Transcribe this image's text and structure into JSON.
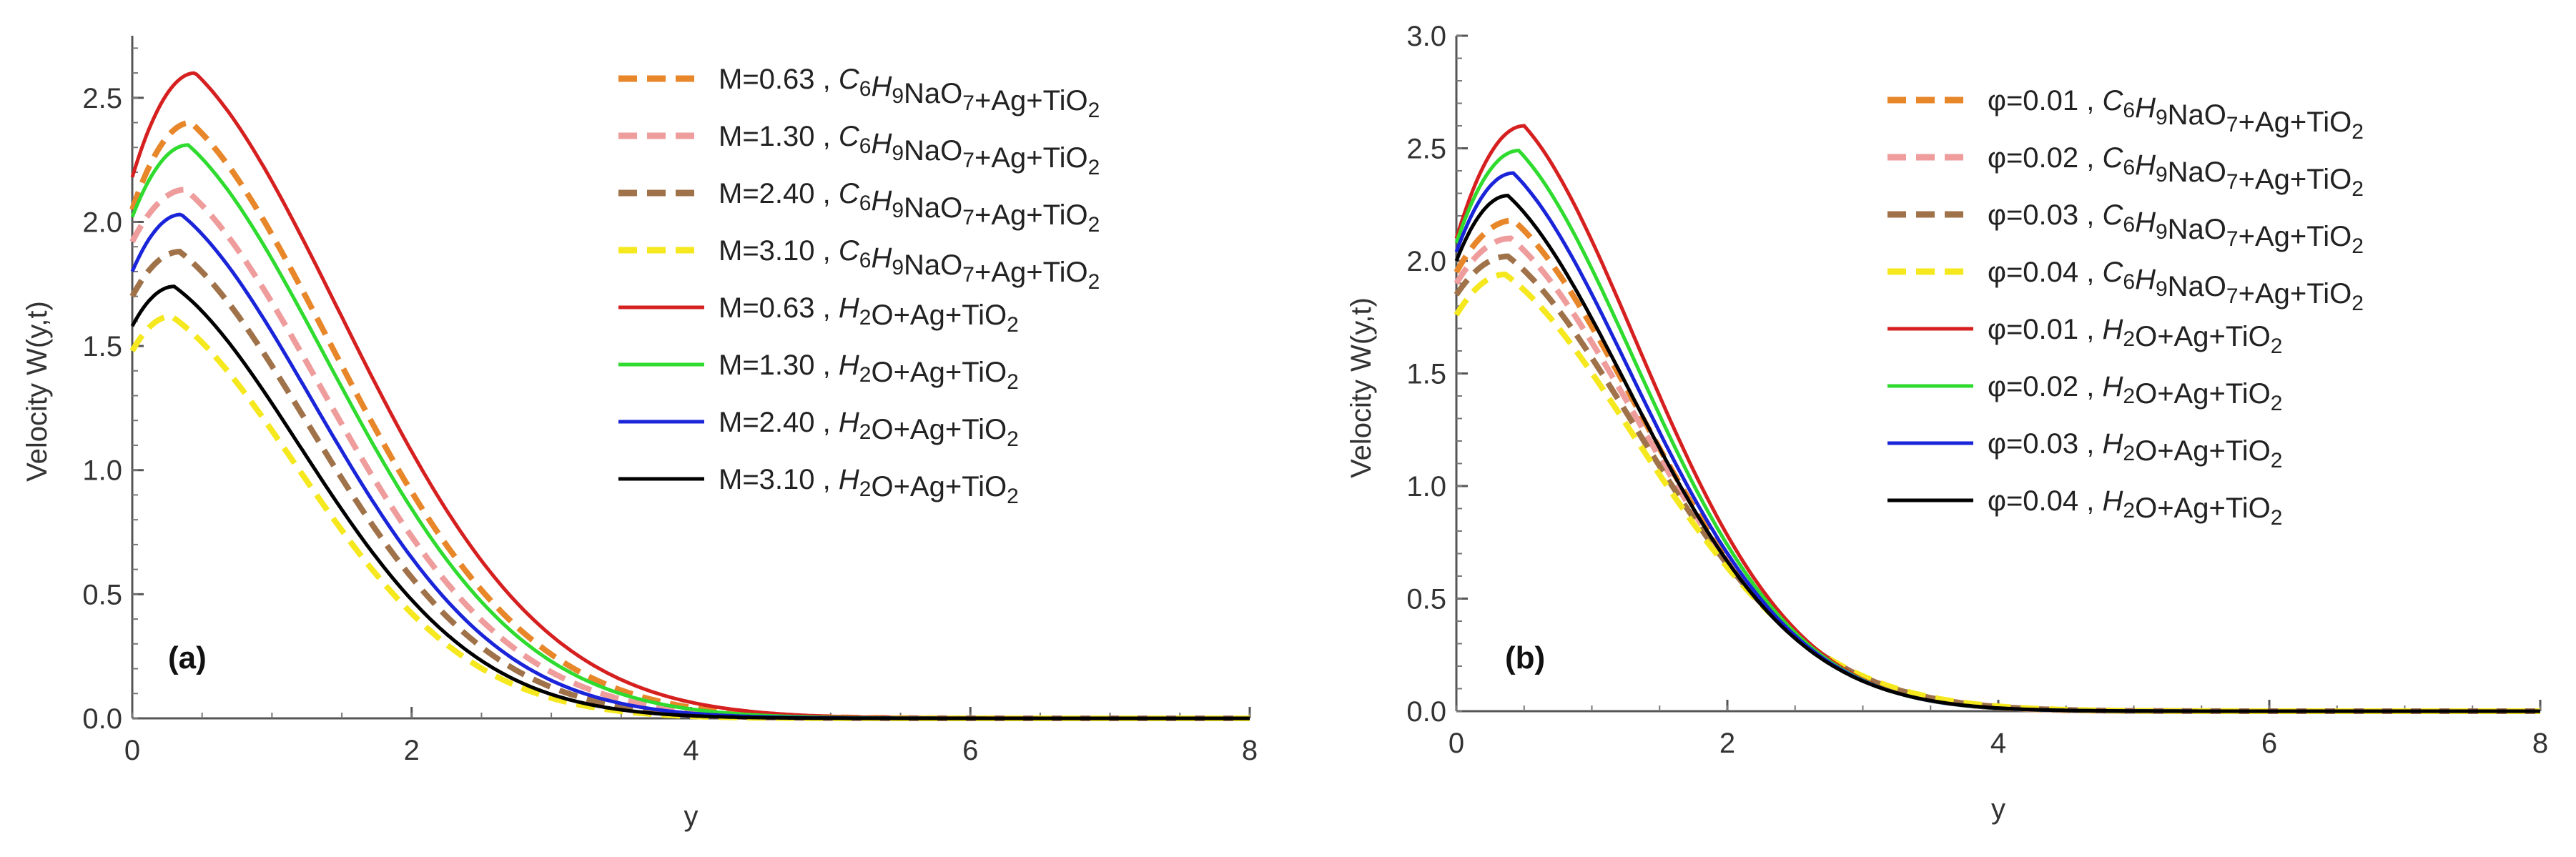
{
  "chart_data": [
    {
      "id": "a",
      "type": "line",
      "panel_label": "(a)",
      "xlabel": "y",
      "ylabel": "Velocity W(y,t)",
      "xlim": [
        0,
        8
      ],
      "ylim": [
        0,
        2.75
      ],
      "xticks": [
        0,
        2,
        4,
        6,
        8
      ],
      "yticks": [
        0.0,
        0.5,
        1.0,
        1.5,
        2.0,
        2.5
      ],
      "ytick_labels": [
        "0.0",
        "0.5",
        "1.0",
        "1.5",
        "2.0",
        "2.5"
      ],
      "xtick_labels": [
        "0",
        "2",
        "4",
        "6",
        "8"
      ],
      "legend_position": "top-right",
      "series": [
        {
          "param": "M=0.63",
          "fluid": "C6H9NaO7+Ag+TiO2",
          "color": "#E8862A",
          "dashed": true,
          "w0": 2.05,
          "peak": 2.4,
          "ypk": 0.42,
          "tail": 0.85
        },
        {
          "param": "M=1.30",
          "fluid": "C6H9NaO7+Ag+TiO2",
          "color": "#EE9C9C",
          "dashed": true,
          "w0": 1.92,
          "peak": 2.13,
          "ypk": 0.38,
          "tail": 0.88
        },
        {
          "param": "M=2.40",
          "fluid": "C6H9NaO7+Ag+TiO2",
          "color": "#A0724A",
          "dashed": true,
          "w0": 1.7,
          "peak": 1.88,
          "ypk": 0.34,
          "tail": 0.92
        },
        {
          "param": "M=3.10",
          "fluid": "C6H9NaO7+Ag+TiO2",
          "color": "#F5E81E",
          "dashed": true,
          "w0": 1.48,
          "peak": 1.62,
          "ypk": 0.28,
          "tail": 0.95
        },
        {
          "param": "M=0.63",
          "fluid": "H2O+Ag+TiO2",
          "color": "#D62020",
          "dashed": false,
          "w0": 2.18,
          "peak": 2.6,
          "ypk": 0.45,
          "tail": 0.82
        },
        {
          "param": "M=1.30",
          "fluid": "H2O+Ag+TiO2",
          "color": "#2EDB2E",
          "dashed": false,
          "w0": 2.02,
          "peak": 2.31,
          "ypk": 0.4,
          "tail": 0.86
        },
        {
          "param": "M=2.40",
          "fluid": "H2O+Ag+TiO2",
          "color": "#1A24D8",
          "dashed": false,
          "w0": 1.8,
          "peak": 2.03,
          "ypk": 0.35,
          "tail": 0.9
        },
        {
          "param": "M=3.10",
          "fluid": "H2O+Ag+TiO2",
          "color": "#000000",
          "dashed": false,
          "w0": 1.58,
          "peak": 1.74,
          "ypk": 0.3,
          "tail": 0.94
        }
      ]
    },
    {
      "id": "b",
      "type": "line",
      "panel_label": "(b)",
      "xlabel": "y",
      "ylabel": "Velocity W(y,t)",
      "xlim": [
        0,
        8
      ],
      "ylim": [
        0,
        3.0
      ],
      "xticks": [
        0,
        2,
        4,
        6,
        8
      ],
      "yticks": [
        0.0,
        0.5,
        1.0,
        1.5,
        2.0,
        2.5,
        3.0
      ],
      "ytick_labels": [
        "0.0",
        "0.5",
        "1.0",
        "1.5",
        "2.0",
        "2.5",
        "3.0"
      ],
      "xtick_labels": [
        "0",
        "2",
        "4",
        "6",
        "8"
      ],
      "legend_position": "top-right",
      "series": [
        {
          "param": "φ=0.01",
          "fluid": "C6H9NaO7+Ag+TiO2",
          "color": "#E8862A",
          "dashed": true,
          "w0": 1.95,
          "peak": 2.18,
          "ypk": 0.42,
          "tail": 0.95
        },
        {
          "param": "φ=0.02",
          "fluid": "C6H9NaO7+Ag+TiO2",
          "color": "#EE9C9C",
          "dashed": true,
          "w0": 1.9,
          "peak": 2.1,
          "ypk": 0.4,
          "tail": 0.93
        },
        {
          "param": "φ=0.03",
          "fluid": "C6H9NaO7+Ag+TiO2",
          "color": "#A0724A",
          "dashed": true,
          "w0": 1.85,
          "peak": 2.02,
          "ypk": 0.38,
          "tail": 0.91
        },
        {
          "param": "φ=0.04",
          "fluid": "C6H9NaO7+Ag+TiO2",
          "color": "#F5E81E",
          "dashed": true,
          "w0": 1.76,
          "peak": 1.94,
          "ypk": 0.36,
          "tail": 0.89
        },
        {
          "param": "φ=0.01",
          "fluid": "H2O+Ag+TiO2",
          "color": "#D62020",
          "dashed": false,
          "w0": 2.1,
          "peak": 2.6,
          "ypk": 0.5,
          "tail": 1.02
        },
        {
          "param": "φ=0.02",
          "fluid": "H2O+Ag+TiO2",
          "color": "#2EDB2E",
          "dashed": false,
          "w0": 2.08,
          "peak": 2.49,
          "ypk": 0.46,
          "tail": 1.0
        },
        {
          "param": "φ=0.03",
          "fluid": "H2O+Ag+TiO2",
          "color": "#1A24D8",
          "dashed": false,
          "w0": 2.04,
          "peak": 2.39,
          "ypk": 0.42,
          "tail": 0.98
        },
        {
          "param": "φ=0.04",
          "fluid": "H2O+Ag+TiO2",
          "color": "#000000",
          "dashed": false,
          "w0": 2.0,
          "peak": 2.29,
          "ypk": 0.38,
          "tail": 0.96
        }
      ]
    }
  ]
}
